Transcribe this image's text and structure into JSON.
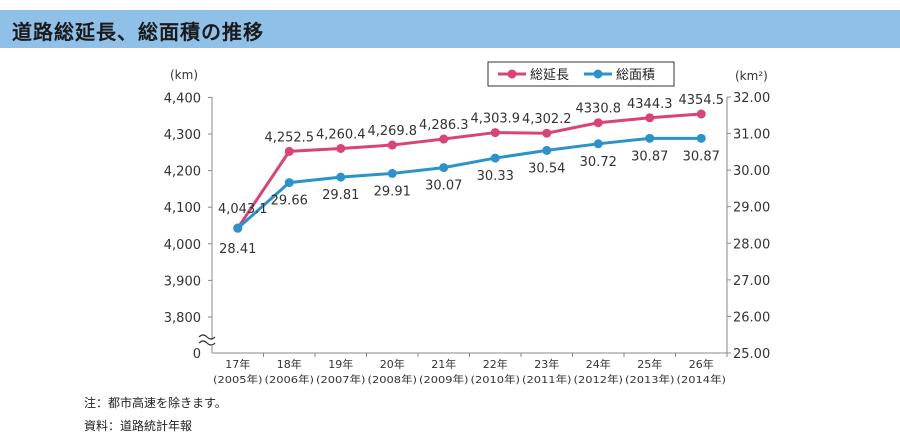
{
  "header": {
    "title": "道路総延長、総面積の推移"
  },
  "notes": {
    "note1": "注：都市高速を除きます。",
    "note2": "資料：道路統計年報"
  },
  "colors": {
    "header_bg": "#8fc1e8",
    "length_series": "#d9437a",
    "area_series": "#2b93c9"
  },
  "chart_data": {
    "type": "line",
    "categories": [
      [
        "17年",
        "(2005年)"
      ],
      [
        "18年",
        "(2006年)"
      ],
      [
        "19年",
        "(2007年)"
      ],
      [
        "20年",
        "(2008年)"
      ],
      [
        "21年",
        "(2009年)"
      ],
      [
        "22年",
        "(2010年)"
      ],
      [
        "23年",
        "(2011年)"
      ],
      [
        "24年",
        "(2012年)"
      ],
      [
        "25年",
        "(2013年)"
      ],
      [
        "26年",
        "(2014年)"
      ]
    ],
    "left_axis": {
      "unit_label": "(km)",
      "ticks": [
        "4,400",
        "4,300",
        "4,200",
        "4,100",
        "4,000",
        "3,900",
        "3,800"
      ],
      "tick_values": [
        4400,
        4300,
        4200,
        4100,
        4000,
        3900,
        3800
      ],
      "zero_label": "0",
      "range": [
        3750,
        4400
      ],
      "axis_break": true
    },
    "right_axis": {
      "unit_label": "(km²)",
      "ticks": [
        "32.00",
        "31.00",
        "30.00",
        "29.00",
        "28.00",
        "27.00",
        "26.00",
        "25.00"
      ],
      "tick_values": [
        32,
        31,
        30,
        29,
        28,
        27,
        26,
        25
      ],
      "range": [
        25,
        32
      ]
    },
    "series": [
      {
        "name": "総延長",
        "axis": "left",
        "values": [
          4043.1,
          4252.5,
          4260.4,
          4269.8,
          4286.3,
          4303.9,
          4302.2,
          4330.8,
          4344.3,
          4354.5
        ],
        "labels": [
          "4,043.1",
          "4,252.5",
          "4,260.4",
          "4,269.8",
          "4,286.3",
          "4,303.9",
          "4,302.2",
          "4330.8",
          "4344.3",
          "4354.5"
        ]
      },
      {
        "name": "総面積",
        "axis": "right",
        "values": [
          28.41,
          29.66,
          29.81,
          29.91,
          30.07,
          30.33,
          30.54,
          30.72,
          30.87,
          30.87
        ],
        "labels": [
          "28.41",
          "29.66",
          "29.81",
          "29.91",
          "30.07",
          "30.33",
          "30.54",
          "30.72",
          "30.87",
          "30.87"
        ]
      }
    ],
    "legend": {
      "placement": "top-center"
    },
    "grid": false
  }
}
